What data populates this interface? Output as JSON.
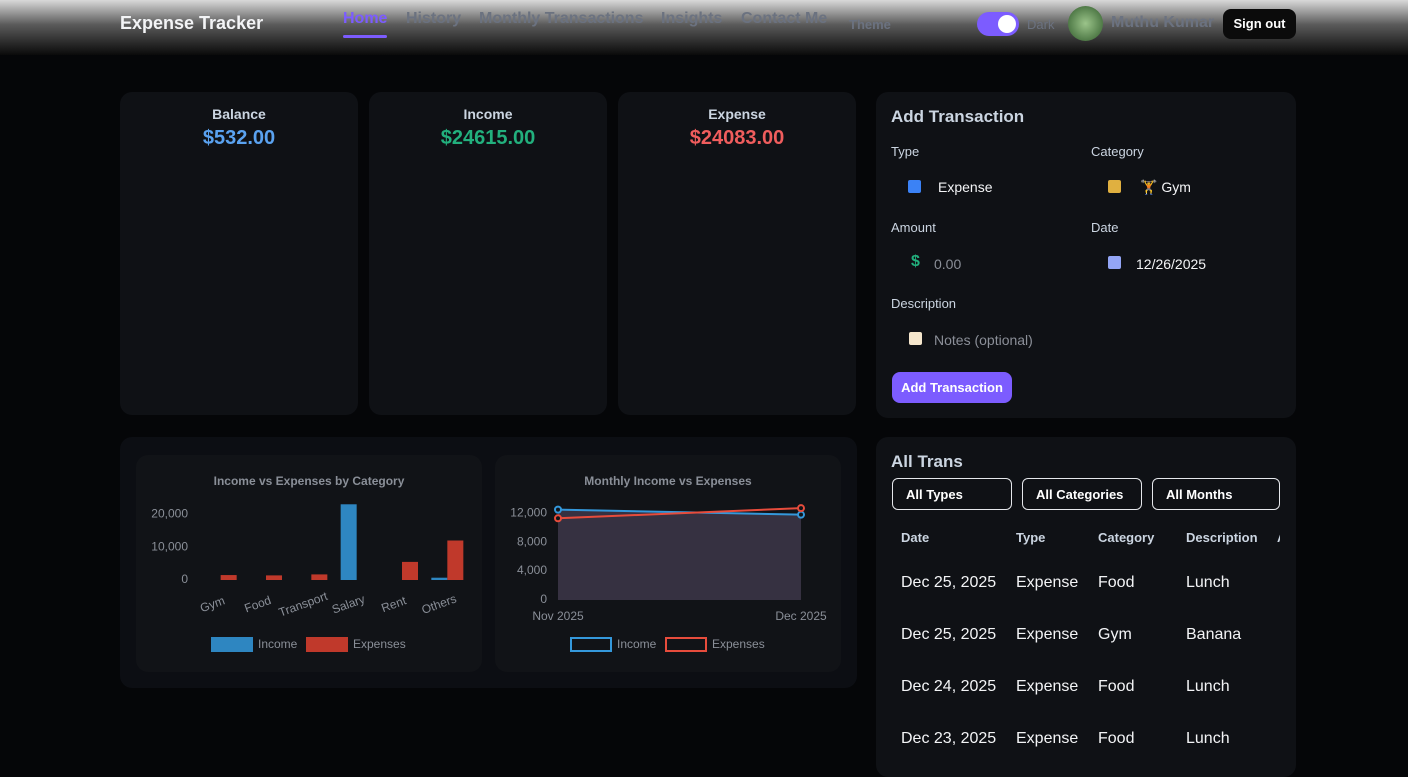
{
  "header": {
    "brand": "Expense Tracker",
    "nav": [
      "Home",
      "History",
      "Monthly Transactions",
      "Insights",
      "Contact Me"
    ],
    "theme": "Theme",
    "toggle": "Dark",
    "user": "Muthu Kumar",
    "signout": "Sign out"
  },
  "summary": [
    {
      "label": "Balance",
      "value": "$532.00"
    },
    {
      "label": "Income",
      "value": "$24615.00"
    },
    {
      "label": "Expense",
      "value": "$24083.00"
    }
  ],
  "form": {
    "title": "Add Transaction",
    "type_label": "Type",
    "type_value": "Expense",
    "category_label": "Category",
    "category_value": "🏋 Gym",
    "amount_label": "Amount",
    "amount_placeholder": "0.00",
    "date_label": "Date",
    "date_value": "12/26/2025",
    "description_label": "Description",
    "description_placeholder": "Notes (optional)",
    "button": "Add Transaction"
  },
  "chart_data": [
    {
      "type": "bar",
      "title": "Income vs Expenses by Category",
      "categories": [
        "Gym",
        "Food",
        "Transport",
        "Salary",
        "Rent",
        "Others"
      ],
      "series": [
        {
          "name": "Income",
          "color": "#2e86c1",
          "values": [
            0,
            0,
            0,
            23000,
            0,
            700
          ]
        },
        {
          "name": "Expenses",
          "color": "#c0392b",
          "values": [
            1500,
            1400,
            1700,
            0,
            5500,
            12000
          ]
        }
      ],
      "ylim": [
        0,
        24000
      ],
      "yticks": [
        0,
        {
          "value": 10000,
          "label": "10,000"
        },
        {
          "value": 20000,
          "label": "20,000"
        }
      ]
    },
    {
      "type": "line",
      "title": "Monthly Income vs Expenses",
      "x": [
        "Nov 2025",
        "Dec 2025"
      ],
      "series": [
        {
          "name": "Income",
          "color": "#3498db",
          "values": [
            12500,
            11800
          ]
        },
        {
          "name": "Expenses",
          "color": "#e74c3c",
          "values": [
            11300,
            12700
          ]
        }
      ],
      "ylim": [
        0,
        13000
      ],
      "yticks": [
        0,
        {
          "value": 4000,
          "label": "4,000"
        },
        {
          "value": 8000,
          "label": "8,000"
        },
        {
          "value": 12000,
          "label": "12,000"
        }
      ]
    }
  ],
  "transactions": {
    "title": "All Trans",
    "filters": [
      "All Types",
      "All Categories",
      "All Months"
    ],
    "columns": [
      "Date",
      "Type",
      "Category",
      "Description",
      "Amount"
    ],
    "rows": [
      [
        "Dec 25, 2025",
        "Expense",
        "Food",
        "Lunch"
      ],
      [
        "Dec 25, 2025",
        "Expense",
        "Gym",
        "Banana"
      ],
      [
        "Dec 24, 2025",
        "Expense",
        "Food",
        "Lunch"
      ],
      [
        "Dec 23, 2025",
        "Expense",
        "Food",
        "Lunch"
      ]
    ]
  }
}
